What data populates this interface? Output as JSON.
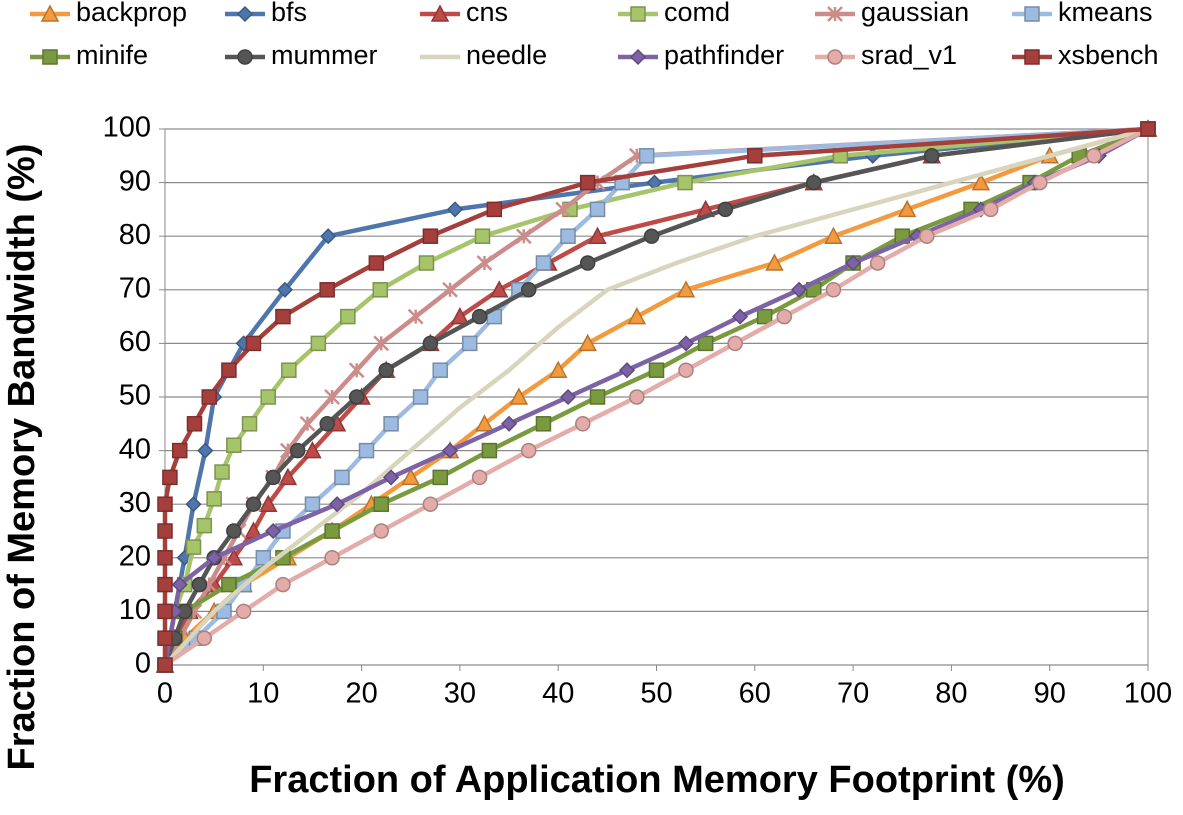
{
  "chart_data": {
    "type": "line",
    "x_label": "Fraction of Application Memory Footprint (%)",
    "y_label": "Fraction of Memory Bandwidth (%)",
    "xlim": [
      0,
      100
    ],
    "ylim": [
      0,
      100
    ],
    "xticks": [
      0,
      10,
      20,
      30,
      40,
      50,
      60,
      70,
      80,
      90,
      100
    ],
    "yticks": [
      0,
      10,
      20,
      30,
      40,
      50,
      60,
      70,
      80,
      90,
      100
    ],
    "grid": true,
    "legend": "top",
    "series": [
      {
        "name": "backprop",
        "color": "#F39A3F",
        "marker": "triangle",
        "x": [
          0,
          2,
          5,
          8,
          12.5,
          17,
          21,
          25,
          29,
          32.5,
          36,
          40,
          43,
          48,
          53,
          62,
          68,
          75.5,
          83,
          90,
          100
        ],
        "values": [
          0,
          5,
          10,
          15,
          20,
          25,
          30,
          35,
          40,
          45,
          50,
          55,
          60,
          65,
          70,
          75,
          80,
          85,
          90,
          95,
          100
        ]
      },
      {
        "name": "bfs",
        "color": "#4F76AC",
        "marker": "diamond",
        "x": [
          0,
          1,
          2,
          2.9,
          4.1,
          5,
          8,
          12.2,
          16.6,
          29.5,
          49.8,
          72,
          100
        ],
        "values": [
          0,
          10,
          20,
          30,
          40,
          50,
          60,
          70,
          80,
          85,
          90,
          95,
          100
        ]
      },
      {
        "name": "cns",
        "color": "#BE4B48",
        "marker": "triangle",
        "x": [
          0,
          1,
          2.5,
          5,
          7,
          9,
          10.5,
          12.5,
          15,
          17.5,
          20,
          22.5,
          27,
          30,
          34,
          39,
          44,
          55,
          66,
          78,
          100
        ],
        "values": [
          0,
          5,
          10,
          15,
          20,
          25,
          30,
          35,
          40,
          45,
          50,
          55,
          60,
          65,
          70,
          75,
          80,
          85,
          90,
          95,
          100
        ]
      },
      {
        "name": "comd",
        "color": "#A6C46A",
        "marker": "square",
        "x": [
          0,
          1,
          2,
          2.9,
          4,
          5,
          5.8,
          7,
          8.6,
          10.5,
          12.6,
          15.6,
          18.6,
          21.9,
          26.6,
          32.3,
          41.2,
          52.9,
          68.7,
          100
        ],
        "values": [
          0,
          10,
          15,
          22,
          26,
          31,
          36,
          41,
          45,
          50,
          55,
          60,
          65,
          70,
          75,
          80,
          85,
          90,
          95,
          100
        ]
      },
      {
        "name": "gaussian",
        "color": "#CC8C8A",
        "marker": "asterisk",
        "x": [
          0,
          1.5,
          3,
          4.5,
          6,
          7.5,
          9,
          11,
          12.5,
          14.5,
          17,
          19.5,
          22,
          25.5,
          29,
          32.5,
          36.5,
          40.5,
          44,
          48,
          100
        ],
        "values": [
          0,
          5,
          10,
          15,
          20,
          25,
          30,
          35,
          40,
          45,
          50,
          55,
          60,
          65,
          70,
          75,
          80,
          85,
          90,
          95,
          100
        ]
      },
      {
        "name": "kmeans",
        "color": "#9DBBE0",
        "marker": "square",
        "x": [
          0,
          3.2,
          6,
          8,
          10,
          12,
          15,
          18,
          20.5,
          23,
          26,
          28,
          31,
          33.5,
          36,
          38.5,
          41,
          44,
          46.5,
          49,
          100
        ],
        "values": [
          0,
          5,
          10,
          15,
          20,
          25,
          30,
          35,
          40,
          45,
          50,
          55,
          60,
          65,
          70,
          75,
          80,
          85,
          90,
          95,
          100
        ]
      },
      {
        "name": "minife",
        "color": "#7A9A40",
        "marker": "square",
        "x": [
          0,
          1,
          2,
          6.5,
          12,
          17,
          22,
          28,
          33,
          38.5,
          44,
          50,
          55,
          61,
          66,
          70,
          75,
          82,
          88,
          93,
          100
        ],
        "values": [
          0,
          5,
          10,
          15,
          20,
          25,
          30,
          35,
          40,
          45,
          50,
          55,
          60,
          65,
          70,
          75,
          80,
          85,
          90,
          95,
          100
        ]
      },
      {
        "name": "mummer",
        "color": "#555555",
        "marker": "circle",
        "x": [
          0,
          1,
          2,
          3.5,
          5,
          7,
          9,
          11,
          13.5,
          16.5,
          19.5,
          22.5,
          27,
          32,
          37,
          43,
          49.5,
          57,
          66,
          78,
          100
        ],
        "values": [
          0,
          5,
          10,
          15,
          20,
          25,
          30,
          35,
          40,
          45,
          50,
          55,
          60,
          65,
          70,
          75,
          80,
          85,
          90,
          95,
          100
        ]
      },
      {
        "name": "needle",
        "color": "#D9D5BC",
        "marker": "none",
        "x": [
          0,
          5,
          10,
          15,
          20,
          25,
          30,
          35,
          40,
          45,
          52,
          60,
          70,
          80,
          90,
          100
        ],
        "values": [
          0,
          10,
          18,
          25,
          32,
          40,
          48,
          55,
          63,
          70,
          75,
          80,
          85,
          90,
          95,
          100
        ]
      },
      {
        "name": "pathfinder",
        "color": "#7D62A6",
        "marker": "diamond",
        "x": [
          0,
          1,
          1.5,
          5,
          11,
          17.5,
          23,
          29,
          35,
          41,
          47,
          53,
          58.5,
          64.5,
          70,
          76.5,
          83,
          88.5,
          95,
          100
        ],
        "values": [
          0,
          10,
          15,
          20,
          25,
          30,
          35,
          40,
          45,
          50,
          55,
          60,
          65,
          70,
          75,
          80,
          85,
          90,
          95,
          100
        ]
      },
      {
        "name": "srad_v1",
        "color": "#E3ACA9",
        "marker": "circle",
        "x": [
          0,
          4,
          8,
          12,
          17,
          22,
          27,
          32,
          37,
          42.5,
          48,
          53,
          58,
          63,
          68,
          72.5,
          77.5,
          84,
          89,
          94.5,
          100
        ],
        "values": [
          0,
          5,
          10,
          15,
          20,
          25,
          30,
          35,
          40,
          45,
          50,
          55,
          60,
          65,
          70,
          75,
          80,
          85,
          90,
          95,
          100
        ]
      },
      {
        "name": "xsbench",
        "color": "#A43F3C",
        "marker": "square",
        "x": [
          0,
          0,
          0,
          0,
          0,
          0,
          0,
          0.5,
          1.5,
          3,
          4.5,
          6.5,
          9,
          12,
          16.5,
          21.5,
          27,
          33.5,
          43,
          60,
          100
        ],
        "values": [
          0,
          5,
          10,
          15,
          20,
          25,
          30,
          35,
          40,
          45,
          50,
          55,
          60,
          65,
          70,
          75,
          80,
          85,
          90,
          95,
          100
        ]
      }
    ]
  }
}
